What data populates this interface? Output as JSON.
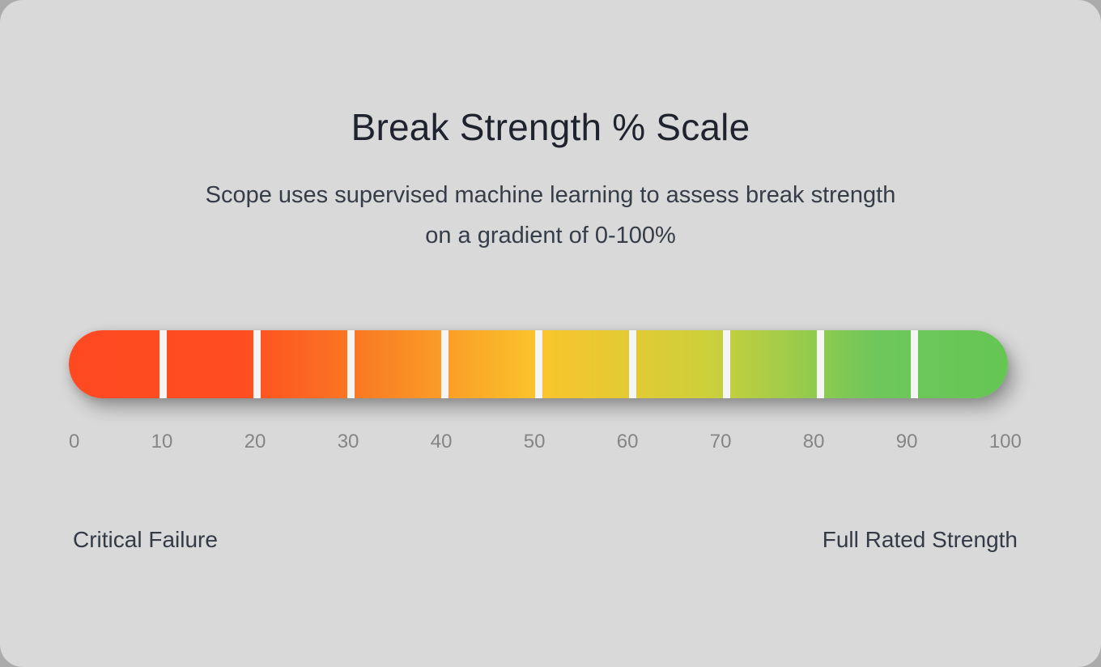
{
  "card": {
    "title": "Break Strength % Scale",
    "subtitle_line1": "Scope uses supervised machine learning to assess break strength",
    "subtitle_line2": "on a gradient of 0-100%"
  },
  "scale": {
    "min": 0,
    "max": 100,
    "segment_count": 10,
    "ticks": [
      "0",
      "10",
      "20",
      "30",
      "40",
      "50",
      "60",
      "70",
      "80",
      "90",
      "100"
    ],
    "gradient_stops": [
      {
        "color": "#ff4a21",
        "pos": "0%"
      },
      {
        "color": "#ff4c20",
        "pos": "18%"
      },
      {
        "color": "#f97e23",
        "pos": "32%"
      },
      {
        "color": "#fbc42c",
        "pos": "50%"
      },
      {
        "color": "#cdd03a",
        "pos": "68%"
      },
      {
        "color": "#6ec75b",
        "pos": "86%"
      },
      {
        "color": "#65c654",
        "pos": "100%"
      }
    ],
    "divider_color": "#f5f5f5"
  },
  "footer": {
    "left_label": "Critical Failure",
    "right_label": "Full Rated Strength"
  },
  "colors": {
    "page_background": "#ababab",
    "card_background": "#d9d9d9",
    "title_text": "#1e232d",
    "subtitle_text": "#363d48",
    "tick_text": "#858585",
    "footer_text": "#343b47"
  }
}
